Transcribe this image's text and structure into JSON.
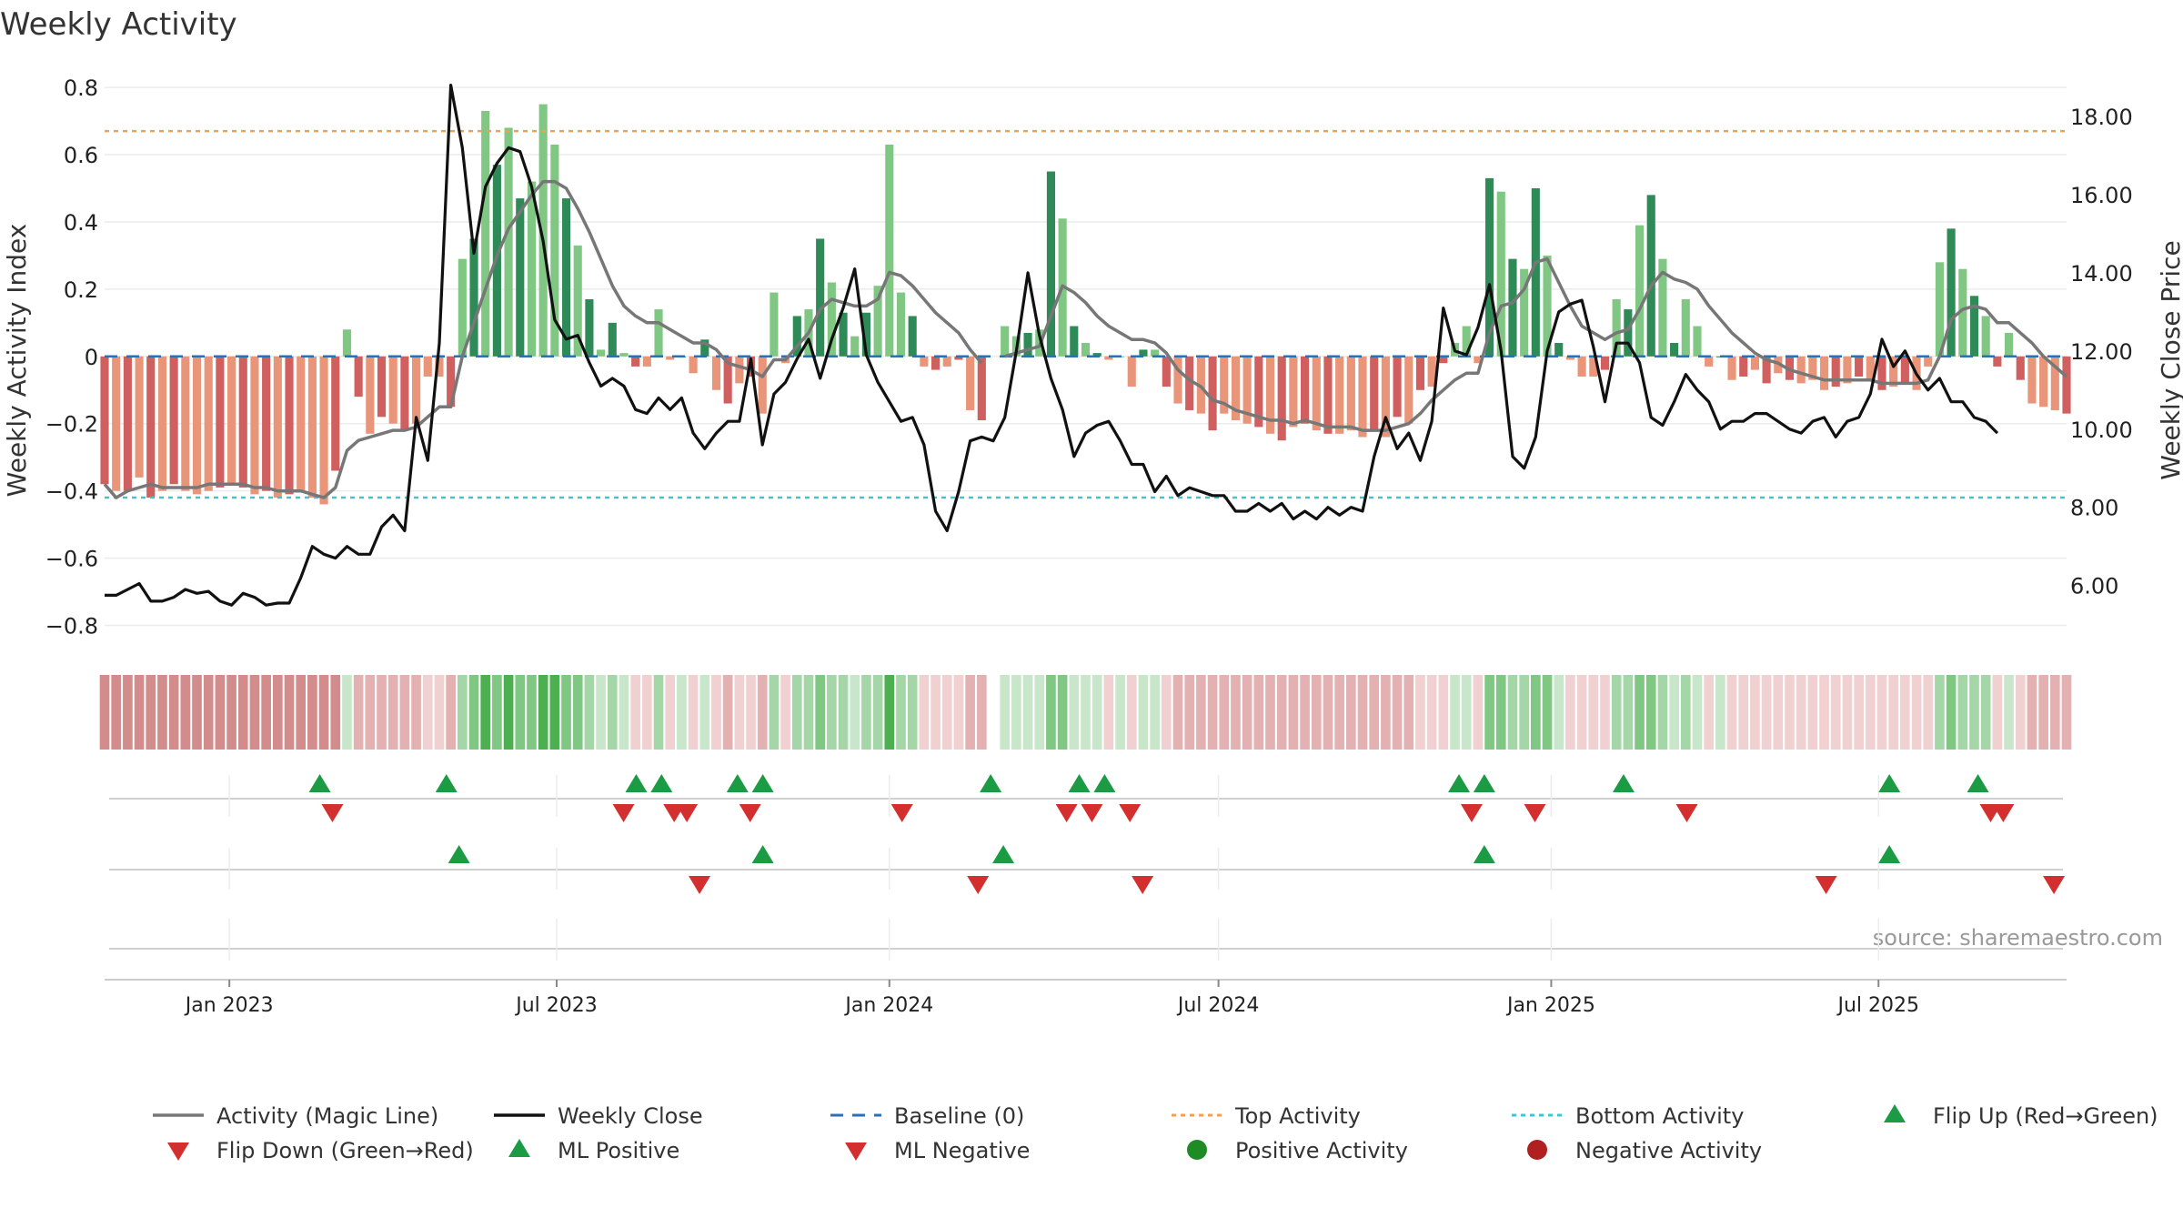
{
  "chart_data": {
    "type": "bar",
    "title": "Weekly Activity",
    "ylabel_left": "Weekly Activity Index",
    "ylabel_right": "Weekly Close Price",
    "source": "source: sharemaestro.com",
    "left_axis": {
      "range": [
        -0.85,
        0.83
      ],
      "ticks": [
        0.8,
        0.6,
        0.4,
        0.2,
        0,
        -0.2,
        -0.4,
        -0.6,
        -0.8
      ],
      "tick_labels": [
        "0.8",
        "0.6",
        "0.4",
        "0.2",
        "0",
        "−0.2",
        "−0.4",
        "−0.6",
        "−0.8"
      ]
    },
    "right_axis": {
      "range": [
        4.55,
        19.0
      ],
      "ticks": [
        18,
        16,
        14,
        12,
        10,
        8,
        6
      ],
      "tick_labels": [
        "18.00",
        "16.00",
        "14.00",
        "12.00",
        "10.00",
        "8.00",
        "6.00"
      ]
    },
    "date_range": [
      "2022-10-24",
      "2025-10-13"
    ],
    "x_ticks": [
      {
        "date": "2023-01-01",
        "label": "Jan 2023"
      },
      {
        "date": "2023-07-01",
        "label": "Jul 2023"
      },
      {
        "date": "2024-01-01",
        "label": "Jan 2024"
      },
      {
        "date": "2024-07-01",
        "label": "Jul 2024"
      },
      {
        "date": "2025-01-01",
        "label": "Jan 2025"
      },
      {
        "date": "2025-07-01",
        "label": "Jul 2025"
      }
    ],
    "top_activity": 0.67,
    "bottom_activity": -0.42,
    "activity": [
      -0.38,
      -0.4,
      -0.4,
      -0.36,
      -0.42,
      -0.4,
      -0.38,
      -0.4,
      -0.41,
      -0.4,
      -0.39,
      -0.38,
      -0.39,
      -0.41,
      -0.4,
      -0.42,
      -0.41,
      -0.4,
      -0.42,
      -0.44,
      -0.34,
      0.08,
      -0.12,
      -0.23,
      -0.18,
      -0.2,
      -0.22,
      -0.2,
      -0.06,
      -0.06,
      -0.15,
      0.29,
      0.35,
      0.73,
      0.57,
      0.68,
      0.47,
      0.52,
      0.75,
      0.63,
      0.47,
      0.33,
      0.17,
      0.02,
      0.1,
      0.01,
      -0.03,
      -0.03,
      0.14,
      -0.01,
      0,
      -0.05,
      0.05,
      -0.1,
      -0.14,
      -0.08,
      -0.06,
      -0.17,
      0.19,
      -0.02,
      0.12,
      0.14,
      0.35,
      0.22,
      0.13,
      0.06,
      0.13,
      0.21,
      0.63,
      0.19,
      0.12,
      -0.03,
      -0.04,
      -0.03,
      -0.01,
      -0.16,
      -0.19,
      null,
      0.09,
      0.06,
      0.07,
      0.08,
      0.55,
      0.41,
      0.09,
      0.04,
      0.01,
      -0.01,
      0,
      -0.09,
      0.02,
      0.02,
      -0.09,
      -0.14,
      -0.16,
      -0.17,
      -0.22,
      -0.17,
      -0.19,
      -0.2,
      -0.21,
      -0.23,
      -0.25,
      -0.21,
      -0.2,
      -0.22,
      -0.23,
      -0.23,
      -0.22,
      -0.24,
      -0.22,
      -0.24,
      -0.18,
      -0.2,
      -0.1,
      -0.09,
      -0.02,
      0.04,
      0.09,
      -0.02,
      0.53,
      0.49,
      0.29,
      0.26,
      0.5,
      0.3,
      0.04,
      -0.01,
      -0.06,
      -0.06,
      -0.04,
      0.17,
      0.14,
      0.39,
      0.48,
      0.29,
      0.04,
      0.17,
      0.09,
      -0.03,
      0,
      -0.07,
      -0.06,
      -0.04,
      -0.08,
      -0.05,
      -0.07,
      -0.08,
      -0.07,
      -0.1,
      -0.09,
      -0.08,
      -0.06,
      -0.07,
      -0.1,
      -0.09,
      -0.08,
      -0.1,
      -0.03,
      0.28,
      0.38,
      0.26,
      0.18,
      0.12,
      -0.03,
      0.07,
      -0.07,
      -0.14,
      -0.15,
      -0.16,
      -0.17
    ],
    "magic_line": [
      -0.38,
      -0.42,
      -0.4,
      -0.39,
      -0.38,
      -0.39,
      -0.39,
      -0.39,
      -0.39,
      -0.38,
      -0.38,
      -0.38,
      -0.38,
      -0.39,
      -0.39,
      -0.4,
      -0.4,
      -0.4,
      -0.41,
      -0.42,
      -0.39,
      -0.28,
      -0.25,
      -0.24,
      -0.23,
      -0.22,
      -0.22,
      -0.21,
      -0.18,
      -0.15,
      -0.15,
      0.0,
      0.1,
      0.2,
      0.3,
      0.38,
      0.43,
      0.48,
      0.52,
      0.52,
      0.5,
      0.44,
      0.37,
      0.29,
      0.21,
      0.15,
      0.12,
      0.1,
      0.1,
      0.08,
      0.06,
      0.04,
      0.04,
      0.02,
      -0.02,
      -0.03,
      -0.04,
      -0.06,
      -0.01,
      -0.01,
      0.03,
      0.07,
      0.14,
      0.17,
      0.16,
      0.15,
      0.15,
      0.17,
      0.25,
      0.24,
      0.21,
      0.17,
      0.13,
      0.1,
      0.07,
      0.02,
      -0.02,
      null,
      0.0,
      0.01,
      0.02,
      0.03,
      0.12,
      0.21,
      0.19,
      0.16,
      0.12,
      0.09,
      0.07,
      0.05,
      0.05,
      0.04,
      0.01,
      -0.04,
      -0.07,
      -0.09,
      -0.13,
      -0.14,
      -0.16,
      -0.17,
      -0.18,
      -0.19,
      -0.19,
      -0.2,
      -0.19,
      -0.2,
      -0.21,
      -0.21,
      -0.21,
      -0.22,
      -0.22,
      -0.22,
      -0.21,
      -0.2,
      -0.17,
      -0.13,
      -0.1,
      -0.07,
      -0.05,
      -0.05,
      0.07,
      0.15,
      0.16,
      0.2,
      0.28,
      0.29,
      0.22,
      0.15,
      0.09,
      0.07,
      0.05,
      0.07,
      0.08,
      0.14,
      0.21,
      0.25,
      0.23,
      0.22,
      0.2,
      0.15,
      0.11,
      0.07,
      0.04,
      0.01,
      -0.01,
      -0.02,
      -0.04,
      -0.05,
      -0.06,
      -0.07,
      -0.07,
      -0.07,
      -0.07,
      -0.07,
      -0.08,
      -0.08,
      -0.08,
      -0.08,
      -0.07,
      0.0,
      0.11,
      0.14,
      0.15,
      0.14,
      0.1,
      0.1,
      0.07,
      0.04,
      0.0,
      -0.03,
      -0.06
    ],
    "weekly_close": [
      5.75,
      5.75,
      5.9,
      6.05,
      5.6,
      5.6,
      5.7,
      5.9,
      5.8,
      5.85,
      5.6,
      5.5,
      5.8,
      5.7,
      5.5,
      5.55,
      5.55,
      6.2,
      7.0,
      6.8,
      6.7,
      7.0,
      6.8,
      6.8,
      7.5,
      7.8,
      7.4,
      10.3,
      9.2,
      12.2,
      18.8,
      17.2,
      14.5,
      16.2,
      16.8,
      17.2,
      17.1,
      16.2,
      14.8,
      12.8,
      12.3,
      12.4,
      11.7,
      11.1,
      11.3,
      11.1,
      10.5,
      10.4,
      10.8,
      10.5,
      10.8,
      9.9,
      9.5,
      9.9,
      10.2,
      10.2,
      11.8,
      9.6,
      10.9,
      11.2,
      11.8,
      12.3,
      11.3,
      12.3,
      13.1,
      14.1,
      11.9,
      11.2,
      10.7,
      10.2,
      10.3,
      9.6,
      7.9,
      7.4,
      8.4,
      9.7,
      9.8,
      9.7,
      10.3,
      12.0,
      14.0,
      12.4,
      11.3,
      10.5,
      9.3,
      9.9,
      10.1,
      10.2,
      9.7,
      9.1,
      9.1,
      8.4,
      8.8,
      8.3,
      8.5,
      8.4,
      8.3,
      8.3,
      7.9,
      7.9,
      8.1,
      7.9,
      8.1,
      7.7,
      7.9,
      7.7,
      8.0,
      7.8,
      8.0,
      7.9,
      9.3,
      10.3,
      9.5,
      9.9,
      9.2,
      10.2,
      13.1,
      12.0,
      11.9,
      12.6,
      13.7,
      12.0,
      9.3,
      9.0,
      9.8,
      12.0,
      13.0,
      13.2,
      13.3,
      12.1,
      10.7,
      12.2,
      12.2,
      11.7,
      10.3,
      10.1,
      10.7,
      11.4,
      11.0,
      10.7,
      10.0,
      10.2,
      10.2,
      10.4,
      10.4,
      10.2,
      10.0,
      9.9,
      10.2,
      10.3,
      9.8,
      10.2,
      10.3,
      10.9,
      12.3,
      11.6,
      12.0,
      11.4,
      11.0,
      11.3,
      10.7,
      10.7,
      10.3,
      10.2,
      9.9
    ],
    "band_colors": [
      "#d28c8c",
      "#e3b1b1",
      "#f0d0d0",
      "#c8e6c9",
      "#a5d6a7",
      "#81c784",
      "#4caf50",
      "#ffffff"
    ],
    "flip_up": [
      "2023-02-20",
      "2023-05-01",
      "2023-08-14",
      "2023-08-28",
      "2023-10-09",
      "2023-10-23",
      "2024-02-26",
      "2024-04-15",
      "2024-04-29",
      "2024-11-11",
      "2024-11-25",
      "2025-02-10",
      "2025-07-07",
      "2025-08-25"
    ],
    "flip_down": [
      "2023-02-27",
      "2023-08-07",
      "2023-09-04",
      "2023-09-11",
      "2023-10-16",
      "2024-01-08",
      "2024-04-08",
      "2024-04-22",
      "2024-05-13",
      "2024-11-18",
      "2024-12-23",
      "2025-03-17",
      "2025-09-01",
      "2025-09-08"
    ],
    "ml_positive": [
      "2023-05-08",
      "2023-10-23",
      "2024-03-04",
      "2024-11-25",
      "2025-07-07"
    ],
    "ml_negative": [
      "2023-09-18",
      "2024-02-19",
      "2024-05-20",
      "2025-06-02",
      "2025-10-06"
    ],
    "legend": [
      "Activity (Magic Line)",
      "Weekly Close",
      "Baseline (0)",
      "Top Activity",
      "Bottom Activity",
      "Flip Up (Red→Green)",
      "Flip Down (Green→Red)",
      "ML Positive",
      "ML Negative",
      "Positive Activity",
      "Negative Activity"
    ],
    "colors": {
      "pos_dark": "#2e8b57",
      "pos_light": "#81c784",
      "neg_dark": "#d06060",
      "neg_light": "#e8957a",
      "magic": "#777777",
      "close": "#111111",
      "baseline": "#2c6fb3",
      "top": "#f0a050",
      "bottom": "#40c4d0",
      "up": "#1a9b44",
      "down": "#d32f2f",
      "pos_dot": "#1f8b24",
      "neg_dot": "#b02020"
    }
  }
}
